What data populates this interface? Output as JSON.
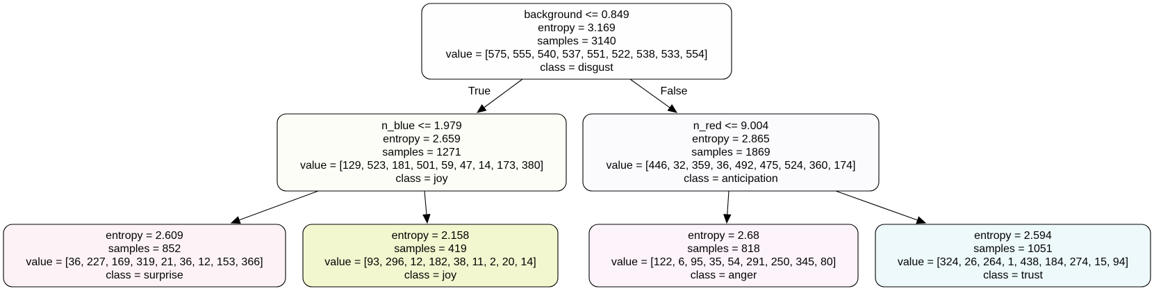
{
  "tree": {
    "nodes": [
      {
        "id": "root",
        "fill": "#fefefe",
        "lines": [
          "background <= 0.849",
          "entropy = 3.169",
          "samples = 3140",
          "value = [575, 555, 540, 537, 551, 522, 538, 533, 554]",
          "class = disgust"
        ]
      },
      {
        "id": "left",
        "fill": "#fdfdf7",
        "lines": [
          "n_blue <= 1.979",
          "entropy = 2.659",
          "samples = 1271",
          "value = [129, 523, 181, 501, 59, 47, 14, 173, 380]",
          "class = joy"
        ]
      },
      {
        "id": "right",
        "fill": "#fbfbfe",
        "lines": [
          "n_red <= 9.004",
          "entropy = 2.865",
          "samples = 1869",
          "value = [446, 32, 359, 36, 492, 475, 524, 360, 174]",
          "class = anticipation"
        ]
      },
      {
        "id": "ll",
        "fill": "#fdf3f6",
        "lines": [
          "entropy = 2.609",
          "samples = 852",
          "value = [36, 227, 169, 319, 21, 36, 12, 153, 366]",
          "class = surprise"
        ]
      },
      {
        "id": "lr",
        "fill": "#f2f7cf",
        "lines": [
          "entropy = 2.158",
          "samples = 419",
          "value = [93, 296, 12, 182, 38, 11, 2, 20, 14]",
          "class = joy"
        ]
      },
      {
        "id": "rl",
        "fill": "#fdf3fb",
        "lines": [
          "entropy = 2.68",
          "samples = 818",
          "value = [122, 6, 95, 35, 54, 291, 250, 345, 80]",
          "class = anger"
        ]
      },
      {
        "id": "rr",
        "fill": "#edf9fb",
        "lines": [
          "entropy = 2.594",
          "samples = 1051",
          "value = [324, 26, 264, 1, 438, 184, 274, 15, 94]",
          "class = trust"
        ]
      }
    ],
    "edges": [
      {
        "from": "root",
        "to": "left",
        "label": "True"
      },
      {
        "from": "root",
        "to": "right",
        "label": "False"
      },
      {
        "from": "left",
        "to": "ll",
        "label": ""
      },
      {
        "from": "left",
        "to": "lr",
        "label": ""
      },
      {
        "from": "right",
        "to": "rl",
        "label": ""
      },
      {
        "from": "right",
        "to": "rr",
        "label": ""
      }
    ]
  }
}
